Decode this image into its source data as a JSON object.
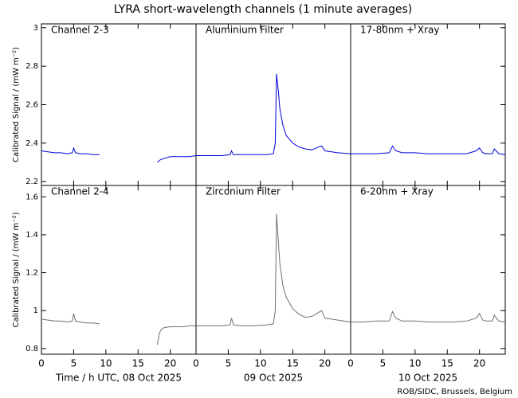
{
  "chart_data": {
    "type": "line",
    "title": "LYRA short-wavelength channels (1 minute averages)",
    "dates": [
      "Time / h UTC, 08 Oct 2025",
      "09 Oct 2025",
      "10 Oct 2025"
    ],
    "credit": "ROB/SIDC, Brussels, Belgium",
    "xlim": [
      0,
      24
    ],
    "xticks": [
      0,
      5,
      10,
      15,
      20
    ],
    "rows": [
      {
        "ylabel": "Calibrated Signal / (mW m⁻²)",
        "ylim": [
          2.18,
          3.02
        ],
        "yticks": [
          2.2,
          2.4,
          2.6,
          2.8,
          3.0
        ],
        "color": "#0000dd",
        "label_color": "#1a1acc",
        "panels": [
          {
            "label": "Channel 2-3",
            "x": [
              0,
              1,
              2,
              3,
              4,
              4.8,
              5,
              5.3,
              6,
              7,
              8,
              9,
              12,
              18,
              18.5,
              19,
              20,
              21,
              22,
              23,
              24
            ],
            "values": [
              2.36,
              2.355,
              2.35,
              2.35,
              2.345,
              2.35,
              2.375,
              2.35,
              2.345,
              2.345,
              2.34,
              2.34,
              null,
              2.3,
              2.315,
              2.32,
              2.33,
              2.33,
              2.33,
              2.33,
              2.335
            ]
          },
          {
            "label": "Aluminium Filter",
            "x": [
              0,
              2,
              4,
              5.3,
              5.5,
              5.8,
              7,
              9,
              11,
              12,
              12.3,
              12.5,
              12.8,
              13,
              13.5,
              14,
              15,
              16,
              17,
              18,
              19,
              19.5,
              20,
              22,
              24
            ],
            "values": [
              2.335,
              2.335,
              2.335,
              2.34,
              2.36,
              2.34,
              2.34,
              2.34,
              2.34,
              2.345,
              2.4,
              2.76,
              2.66,
              2.58,
              2.49,
              2.44,
              2.4,
              2.38,
              2.37,
              2.365,
              2.38,
              2.385,
              2.36,
              2.35,
              2.345
            ]
          },
          {
            "label": "17-80nm + Xray",
            "x": [
              0,
              2,
              4,
              6,
              6.5,
              7,
              8,
              10,
              12,
              14,
              16,
              18,
              19.5,
              20,
              20.5,
              21,
              22,
              22.3,
              23,
              24
            ],
            "values": [
              2.345,
              2.345,
              2.345,
              2.35,
              2.385,
              2.36,
              2.35,
              2.35,
              2.345,
              2.345,
              2.345,
              2.345,
              2.36,
              2.375,
              2.35,
              2.345,
              2.345,
              2.37,
              2.345,
              2.34
            ]
          }
        ]
      },
      {
        "ylabel": "Calibrated Signal / (mW m⁻²)",
        "ylim": [
          0.77,
          1.66
        ],
        "yticks": [
          0.8,
          1.0,
          1.2,
          1.4,
          1.6
        ],
        "color": "#707070",
        "label_color": "#999999",
        "panels": [
          {
            "label": "Channel 2-4",
            "x": [
              0,
              1,
              2,
              3,
              4,
              4.8,
              5,
              5.3,
              6,
              7,
              8,
              9,
              12,
              18,
              18.3,
              18.6,
              19,
              20,
              21,
              22,
              23,
              24
            ],
            "values": [
              0.955,
              0.95,
              0.945,
              0.945,
              0.94,
              0.945,
              0.985,
              0.945,
              0.94,
              0.935,
              0.935,
              0.93,
              null,
              0.82,
              0.88,
              0.9,
              0.91,
              0.915,
              0.915,
              0.915,
              0.92,
              0.92
            ]
          },
          {
            "label": "Zirconium Filter",
            "x": [
              0,
              2,
              4,
              5.3,
              5.5,
              5.8,
              7,
              9,
              11,
              12,
              12.3,
              12.5,
              12.8,
              13,
              13.5,
              14,
              15,
              16,
              17,
              18,
              19,
              19.5,
              20,
              22,
              24
            ],
            "values": [
              0.92,
              0.92,
              0.92,
              0.925,
              0.96,
              0.925,
              0.92,
              0.92,
              0.925,
              0.93,
              1.0,
              1.51,
              1.35,
              1.25,
              1.13,
              1.07,
              1.01,
              0.98,
              0.965,
              0.97,
              0.99,
              1.0,
              0.96,
              0.95,
              0.94
            ]
          },
          {
            "label": "6-20nm + Xray",
            "x": [
              0,
              2,
              4,
              6,
              6.5,
              7,
              8,
              10,
              12,
              14,
              16,
              18,
              19.5,
              20,
              20.5,
              21,
              22,
              22.3,
              23,
              24
            ],
            "values": [
              0.94,
              0.94,
              0.945,
              0.945,
              0.995,
              0.96,
              0.945,
              0.945,
              0.94,
              0.94,
              0.94,
              0.945,
              0.96,
              0.985,
              0.95,
              0.945,
              0.945,
              0.975,
              0.945,
              0.94
            ]
          }
        ]
      }
    ]
  }
}
